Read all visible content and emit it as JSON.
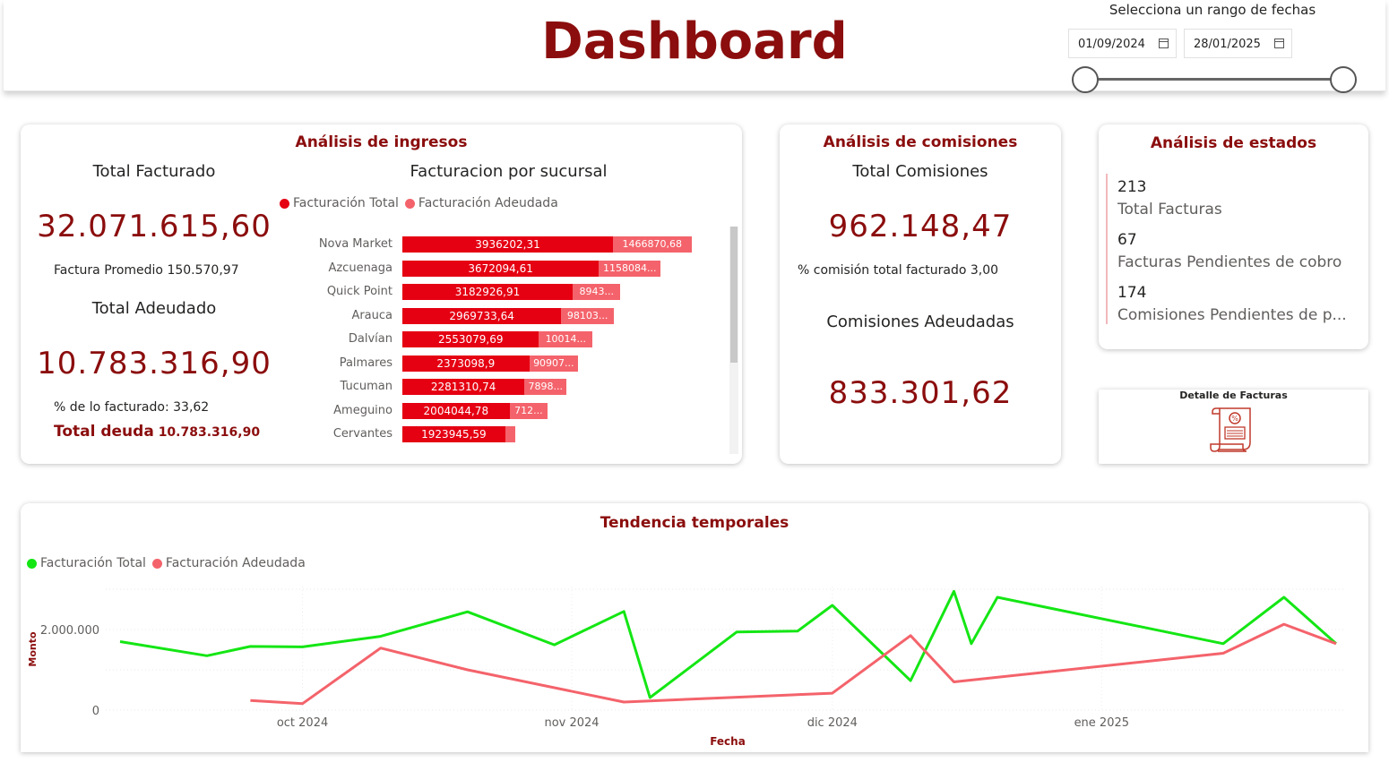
{
  "header": {
    "title": "Dashboard",
    "date_caption": "Selecciona un rango de fechas",
    "date_start": "01/09/2024",
    "date_end": "28/01/2025"
  },
  "ingresos": {
    "title": "Análisis de ingresos",
    "total_facturado_label": "Total Facturado",
    "total_facturado_value": "32.071.615,60",
    "factura_promedio": "Factura Promedio 150.570,97",
    "total_adeudado_label": "Total Adeudado",
    "total_adeudado_value": "10.783.316,90",
    "pct_facturado": "% de lo facturado: 33,62",
    "total_deuda_label": "Total deuda",
    "total_deuda_value": "10.783.316,90",
    "sucursal_title": "Facturacion por sucursal",
    "legend_total": "Facturación Total",
    "legend_adeudada": "Facturación Adeudada",
    "bars": [
      {
        "name": "Nova Market",
        "total": 3936202.31,
        "total_label": "3936202,31",
        "adeudada": 1466870.68,
        "adeudada_label": "1466870,68"
      },
      {
        "name": "Azcuenaga",
        "total": 3672094.61,
        "total_label": "3672094,61",
        "adeudada": 1158084,
        "adeudada_label": "1158084..."
      },
      {
        "name": "Quick Point",
        "total": 3182926.91,
        "total_label": "3182926,91",
        "adeudada": 894300,
        "adeudada_label": "8943..."
      },
      {
        "name": "Arauca",
        "total": 2969733.64,
        "total_label": "2969733,64",
        "adeudada": 981030,
        "adeudada_label": "98103..."
      },
      {
        "name": "Dalvían",
        "total": 2553079.69,
        "total_label": "2553079,69",
        "adeudada": 1001400,
        "adeudada_label": "10014..."
      },
      {
        "name": "Palmares",
        "total": 2373098.9,
        "total_label": "2373098,9",
        "adeudada": 909070,
        "adeudada_label": "90907..."
      },
      {
        "name": "Tucuman",
        "total": 2281310.74,
        "total_label": "2281310,74",
        "adeudada": 789800,
        "adeudada_label": "7898..."
      },
      {
        "name": "Ameguino",
        "total": 2004044.78,
        "total_label": "2004044,78",
        "adeudada": 712000,
        "adeudada_label": "712..."
      },
      {
        "name": "Cervantes",
        "total": 1923945.59,
        "total_label": "1923945,59",
        "adeudada": 190000,
        "adeudada_label": ""
      }
    ]
  },
  "comisiones": {
    "title": "Análisis de comisiones",
    "total_label": "Total Comisiones",
    "total_value": "962.148,47",
    "pct": "% comisión total facturado 3,00",
    "adeudadas_label": "Comisiones Adeudadas",
    "adeudadas_value": "833.301,62"
  },
  "estados": {
    "title": "Análisis de estados",
    "items": [
      {
        "value": "213",
        "label": "Total Facturas"
      },
      {
        "value": "67",
        "label": "Facturas Pendientes de cobro"
      },
      {
        "value": "174",
        "label": "Comisiones Pendientes de p..."
      }
    ]
  },
  "detalle": {
    "title": "Detalle de Facturas",
    "icon": "invoice-scroll-icon"
  },
  "tendencia": {
    "title": "Tendencia temporales",
    "legend_total": "Facturación Total",
    "legend_adeudada": "Facturación Adeudada",
    "ylabel": "Monto",
    "xlabel": "Fecha",
    "y_ticks": [
      "0",
      "2.000.000"
    ],
    "x_ticks": [
      "oct 2024",
      "nov 2024",
      "dic 2024",
      "ene 2025"
    ]
  },
  "chart_data": {
    "type": "line",
    "title": "Tendencia temporales",
    "xlabel": "Fecha",
    "ylabel": "Monto",
    "ylim": [
      0,
      3000000
    ],
    "x_range": [
      "2024-09-10",
      "2025-01-28"
    ],
    "series": [
      {
        "name": "Facturación Total",
        "color": "#14e614",
        "x": [
          "2024-09-10",
          "2024-09-20",
          "2024-09-25",
          "2024-10-01",
          "2024-10-10",
          "2024-10-20",
          "2024-10-30",
          "2024-11-07",
          "2024-11-10",
          "2024-11-20",
          "2024-11-27",
          "2024-12-01",
          "2024-12-10",
          "2024-12-15",
          "2024-12-17",
          "2024-12-20",
          "2025-01-15",
          "2025-01-22",
          "2025-01-28"
        ],
        "values": [
          1700000,
          1350000,
          1580000,
          1570000,
          1830000,
          2440000,
          1620000,
          2450000,
          310000,
          1940000,
          1960000,
          2600000,
          730000,
          2950000,
          1650000,
          2800000,
          1650000,
          2800000,
          1650000
        ]
      },
      {
        "name": "Facturación Adeudada",
        "color": "#f4636b",
        "x": [
          "2024-09-25",
          "2024-10-01",
          "2024-10-10",
          "2024-10-20",
          "2024-11-07",
          "2024-11-20",
          "2024-12-01",
          "2024-12-10",
          "2024-12-15",
          "2025-01-15",
          "2025-01-22",
          "2025-01-28"
        ],
        "values": [
          240000,
          160000,
          1540000,
          1000000,
          200000,
          320000,
          420000,
          1850000,
          700000,
          1410000,
          2130000,
          1650000
        ]
      }
    ]
  },
  "colors": {
    "brand": "#8b0d0d",
    "bar_total": "#e50012",
    "bar_adeudada": "#f4636b",
    "line_total": "#14e614"
  }
}
